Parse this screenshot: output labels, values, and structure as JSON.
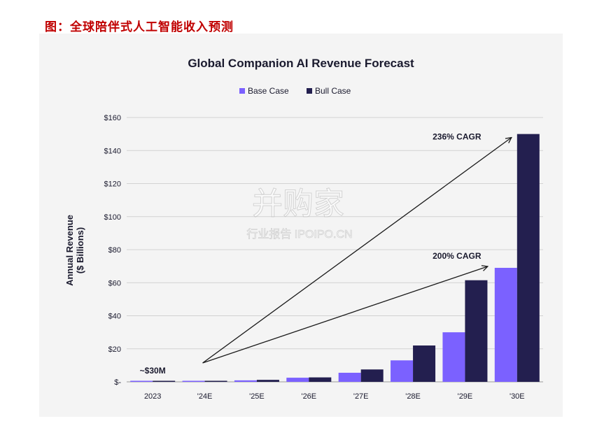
{
  "caption": "图：全球陪伴式人工智能收入预测",
  "watermark": {
    "main": "并购家",
    "sub": "行业报告 IPOIPO.CN"
  },
  "chart_data": {
    "type": "bar",
    "title": "Global Companion AI Revenue Forecast",
    "ylabel_line1": "Annual Revenue",
    "ylabel_line2": "($ Billions)",
    "xlabel": "",
    "categories": [
      "2023",
      "'24E",
      "'25E",
      "'26E",
      "'27E",
      "'28E",
      "'29E",
      "'30E"
    ],
    "series": [
      {
        "name": "Base Case",
        "color": "#7b61ff",
        "values": [
          0.03,
          0.3,
          0.9,
          2.5,
          5.5,
          13,
          30,
          69
        ]
      },
      {
        "name": "Bull Case",
        "color": "#231f4f",
        "values": [
          0.03,
          0.4,
          1.2,
          2.7,
          7.5,
          22,
          61.5,
          150
        ]
      }
    ],
    "ylim": [
      0,
      160
    ],
    "yticks": [
      0,
      20,
      40,
      60,
      80,
      100,
      120,
      140,
      160
    ],
    "ytick_labels": [
      "$-",
      "$20",
      "$40",
      "$60",
      "$80",
      "$100",
      "$120",
      "$140",
      "$160"
    ],
    "grid": true,
    "legend_position": "top-center",
    "annotations": [
      {
        "text": "~$30M"
      },
      {
        "text": "236% CAGR"
      },
      {
        "text": "200% CAGR"
      }
    ]
  }
}
